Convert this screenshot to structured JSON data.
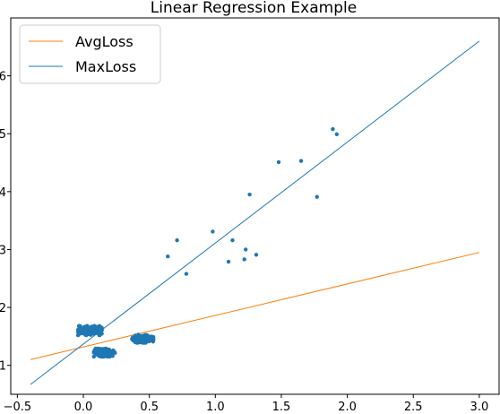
{
  "chart_data": {
    "type": "scatter",
    "title": "Linear Regression Example",
    "xlabel": "",
    "ylabel": "",
    "xlim": [
      -0.55,
      3.15
    ],
    "ylim": [
      0.5,
      7.0
    ],
    "x_ticks": [
      -0.5,
      0.0,
      0.5,
      1.0,
      1.5,
      2.0,
      2.5,
      3.0
    ],
    "x_tick_labels": [
      "−0.5",
      "0.0",
      "0.5",
      "1.0",
      "1.5",
      "2.0",
      "2.5",
      "3.0"
    ],
    "y_ticks": [
      1,
      2,
      3,
      4,
      5,
      6
    ],
    "y_tick_labels": [
      "1",
      "2",
      "3",
      "4",
      "5",
      "6"
    ],
    "grid": false,
    "legend": {
      "position": "top-left",
      "entries": [
        {
          "label": "AvgLoss",
          "color": "#ff7f0e"
        },
        {
          "label": "MaxLoss",
          "color": "#1f77b4"
        }
      ]
    },
    "lines": [
      {
        "name": "AvgLoss",
        "color": "#ff7f0e",
        "x": [
          -0.4,
          3.0
        ],
        "y": [
          1.1,
          2.95
        ]
      },
      {
        "name": "MaxLoss",
        "color": "#1f77b4",
        "x": [
          -0.4,
          3.0
        ],
        "y": [
          0.67,
          6.6
        ]
      }
    ],
    "points": {
      "color": "#1f77b4",
      "outliers": [
        {
          "x": 0.64,
          "y": 2.88
        },
        {
          "x": 0.71,
          "y": 3.16
        },
        {
          "x": 0.78,
          "y": 2.58
        },
        {
          "x": 0.98,
          "y": 3.31
        },
        {
          "x": 1.1,
          "y": 2.79
        },
        {
          "x": 1.13,
          "y": 3.16
        },
        {
          "x": 1.22,
          "y": 2.83
        },
        {
          "x": 1.23,
          "y": 3.0
        },
        {
          "x": 1.26,
          "y": 3.95
        },
        {
          "x": 1.31,
          "y": 2.91
        },
        {
          "x": 1.48,
          "y": 4.51
        },
        {
          "x": 1.65,
          "y": 4.53
        },
        {
          "x": 1.77,
          "y": 3.91
        },
        {
          "x": 1.89,
          "y": 5.08
        },
        {
          "x": 1.92,
          "y": 4.99
        }
      ],
      "clusters": [
        {
          "center_x": 0.05,
          "center_y": 1.6,
          "spread_x": 0.09,
          "spread_y": 0.08
        },
        {
          "center_x": 0.16,
          "center_y": 1.22,
          "spread_x": 0.08,
          "spread_y": 0.07
        },
        {
          "center_x": 0.45,
          "center_y": 1.46,
          "spread_x": 0.08,
          "spread_y": 0.07
        }
      ]
    }
  }
}
